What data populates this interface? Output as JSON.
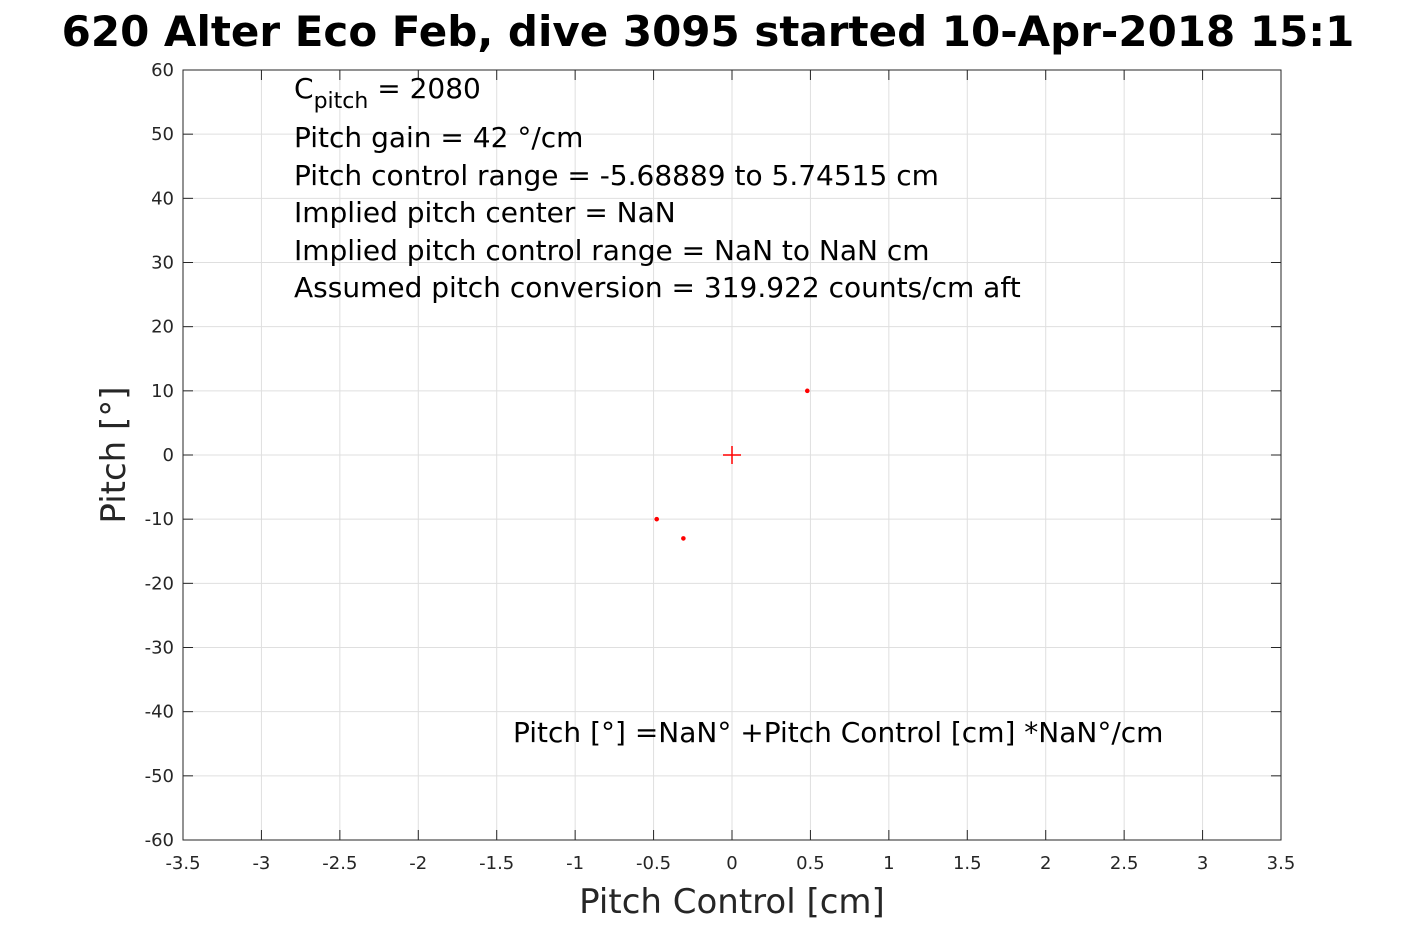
{
  "chart_data": {
    "type": "scatter",
    "title": "620 Alter Eco Feb, dive 3095 started 10-Apr-2018 15:1",
    "xlabel": "Pitch Control [cm]",
    "ylabel": "Pitch [°]",
    "xlim": [
      -3.5,
      3.5
    ],
    "ylim": [
      -60,
      60
    ],
    "xticks": [
      -3.5,
      -3,
      -2.5,
      -2,
      -1.5,
      -1,
      -0.5,
      0,
      0.5,
      1,
      1.5,
      2,
      2.5,
      3,
      3.5
    ],
    "yticks": [
      -60,
      -50,
      -40,
      -30,
      -20,
      -10,
      0,
      10,
      20,
      30,
      40,
      50,
      60
    ],
    "grid": true,
    "series": [
      {
        "marker": "dot",
        "color": "#ff0000",
        "x": [
          -0.48,
          -0.31,
          0.48
        ],
        "y": [
          -10,
          -13,
          10
        ]
      }
    ],
    "center_marker": {
      "marker": "plus",
      "color": "#ff0000",
      "x": 0,
      "y": 0
    },
    "annotations": {
      "cpitch_base": "C",
      "cpitch_sub": "pitch",
      "cpitch_value": " = 2080",
      "lines": [
        "Pitch gain = 42 °/cm",
        "Pitch control range = -5.68889 to 5.74515 cm",
        "Implied pitch center = NaN",
        "Implied pitch control range = NaN to NaN cm",
        "Assumed pitch conversion = 319.922 counts/cm aft"
      ],
      "fit_equation": "Pitch [°] =NaN° +Pitch Control [cm] *NaN°/cm"
    }
  }
}
